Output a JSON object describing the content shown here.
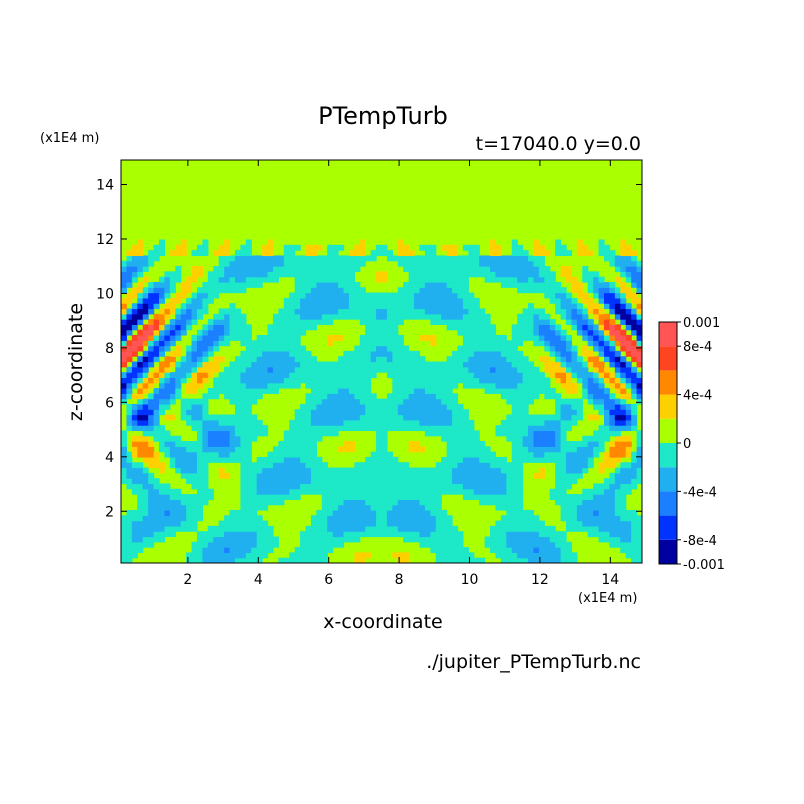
{
  "chart_data": {
    "type": "heatmap",
    "title": "PTempTurb",
    "subtitle": "t=17040.0 y=0.0",
    "xlabel": "x-coordinate",
    "ylabel": "z-coordinate",
    "x_unit": "(x1E4 m)",
    "y_unit": "(x1E4 m)",
    "source": "./jupiter_PTempTurb.nc",
    "xlim": [
      0.1,
      14.9
    ],
    "ylim": [
      0.1,
      14.9
    ],
    "x_ticks": [
      {
        "value": 2,
        "label": "2"
      },
      {
        "value": 4,
        "label": "4"
      },
      {
        "value": 6,
        "label": "6"
      },
      {
        "value": 8,
        "label": "8"
      },
      {
        "value": 10,
        "label": "10"
      },
      {
        "value": 12,
        "label": "12"
      },
      {
        "value": 14,
        "label": "14"
      }
    ],
    "y_ticks": [
      {
        "value": 2,
        "label": "2"
      },
      {
        "value": 4,
        "label": "4"
      },
      {
        "value": 6,
        "label": "6"
      },
      {
        "value": 8,
        "label": "8"
      },
      {
        "value": 10,
        "label": "10"
      },
      {
        "value": 12,
        "label": "12"
      },
      {
        "value": 14,
        "label": "14"
      }
    ],
    "colorbar": {
      "range": [
        -0.001,
        0.001
      ],
      "levels": [
        {
          "from": -0.001,
          "to": -0.0008,
          "color": "#0000a0"
        },
        {
          "from": -0.0008,
          "to": -0.0006,
          "color": "#0033ff"
        },
        {
          "from": -0.0006,
          "to": -0.0004,
          "color": "#1a80ff"
        },
        {
          "from": -0.0004,
          "to": -0.0002,
          "color": "#20b0f0"
        },
        {
          "from": -0.0002,
          "to": 0.0,
          "color": "#1de8c8"
        },
        {
          "from": 0.0,
          "to": 0.0002,
          "color": "#aaff00"
        },
        {
          "from": 0.0002,
          "to": 0.0004,
          "color": "#ffd000"
        },
        {
          "from": 0.0004,
          "to": 0.0006,
          "color": "#ff8800"
        },
        {
          "from": 0.0006,
          "to": 0.0008,
          "color": "#ff4422"
        },
        {
          "from": 0.0008,
          "to": 0.001,
          "color": "#ff5555"
        }
      ],
      "labels": [
        {
          "value": 0.001,
          "label": "0.001"
        },
        {
          "value": 0.0008,
          "label": "8e-4"
        },
        {
          "value": 0.0004,
          "label": "4e-4"
        },
        {
          "value": 0.0,
          "label": "0"
        },
        {
          "value": -0.0004,
          "label": "-4e-4"
        },
        {
          "value": -0.0008,
          "label": "-8e-4"
        },
        {
          "value": -0.001,
          "label": "-0.001"
        }
      ]
    }
  }
}
